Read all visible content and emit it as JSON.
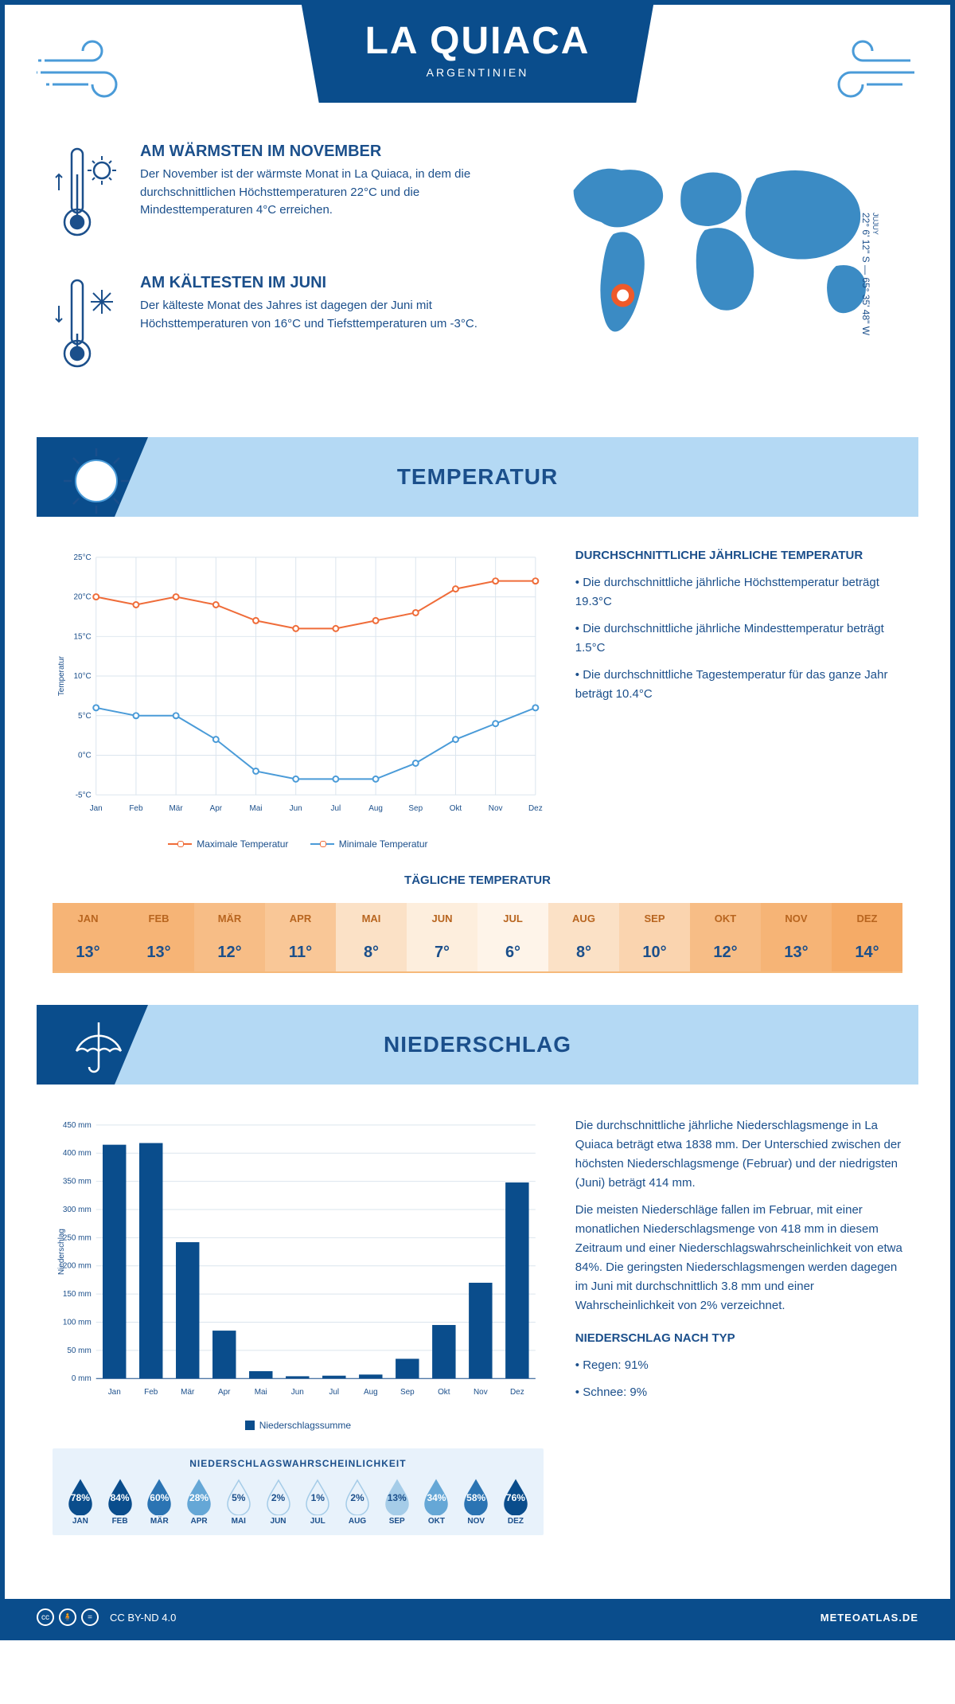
{
  "header": {
    "title": "LA QUIACA",
    "country": "ARGENTINIEN",
    "coords": "22° 6' 12\" S — 65° 35' 48\" W",
    "jujuy": "JUJUY"
  },
  "warmest": {
    "heading": "AM WÄRMSTEN IM NOVEMBER",
    "text": "Der November ist der wärmste Monat in La Quiaca, in dem die durchschnittlichen Höchsttemperaturen 22°C und die Mindesttemperaturen 4°C erreichen."
  },
  "coldest": {
    "heading": "AM KÄLTESTEN IM JUNI",
    "text": "Der kälteste Monat des Jahres ist dagegen der Juni mit Höchsttemperaturen von 16°C und Tiefsttemperaturen um -3°C."
  },
  "temp_section": {
    "title": "TEMPERATUR",
    "info_heading": "DURCHSCHNITTLICHE JÄHRLICHE TEMPERATUR",
    "info1": "• Die durchschnittliche jährliche Höchsttemperatur beträgt 19.3°C",
    "info2": "• Die durchschnittliche jährliche Mindesttemperatur beträgt 1.5°C",
    "info3": "• Die durchschnittliche Tagestemperatur für das ganze Jahr beträgt 10.4°C",
    "chart": {
      "type": "line",
      "months": [
        "Jan",
        "Feb",
        "Mär",
        "Apr",
        "Mai",
        "Jun",
        "Jul",
        "Aug",
        "Sep",
        "Okt",
        "Nov",
        "Dez"
      ],
      "max": [
        20,
        19,
        20,
        19,
        17,
        16,
        16,
        17,
        18,
        21,
        22,
        22
      ],
      "min": [
        6,
        5,
        5,
        2,
        -2,
        -3,
        -3,
        -3,
        -1,
        2,
        4,
        6
      ],
      "max_color": "#ef6c39",
      "min_color": "#4a9bd8",
      "ylim": [
        -5,
        25
      ],
      "ytick_step": 5,
      "ylabel": "Temperatur",
      "ytick_labels": [
        "-5°C",
        "0°C",
        "5°C",
        "10°C",
        "15°C",
        "20°C",
        "25°C"
      ],
      "grid_color": "#dbe5ee",
      "background": "#ffffff",
      "legend_max": "Maximale Temperatur",
      "legend_min": "Minimale Temperatur"
    },
    "daily": {
      "title": "TÄGLICHE TEMPERATUR",
      "months": [
        "JAN",
        "FEB",
        "MÄR",
        "APR",
        "MAI",
        "JUN",
        "JUL",
        "AUG",
        "SEP",
        "OKT",
        "NOV",
        "DEZ"
      ],
      "values": [
        "13°",
        "13°",
        "12°",
        "11°",
        "8°",
        "7°",
        "6°",
        "8°",
        "10°",
        "12°",
        "13°",
        "14°"
      ],
      "colors": [
        "#f6b476",
        "#f6b476",
        "#f7bd86",
        "#f9c797",
        "#fbe1c6",
        "#fdeedd",
        "#fef4e9",
        "#fbe1c6",
        "#fad4af",
        "#f7bd86",
        "#f6b476",
        "#f5ab67"
      ]
    }
  },
  "precip_section": {
    "title": "NIEDERSCHLAG",
    "chart": {
      "type": "bar",
      "months": [
        "Jan",
        "Feb",
        "Mär",
        "Apr",
        "Mai",
        "Jun",
        "Jul",
        "Aug",
        "Sep",
        "Okt",
        "Nov",
        "Dez"
      ],
      "values": [
        415,
        418,
        242,
        85,
        13,
        4,
        5,
        7,
        35,
        95,
        170,
        348
      ],
      "ylim": [
        0,
        450
      ],
      "ytick_step": 50,
      "ylabel": "Niederschlag",
      "ytick_labels": [
        "0 mm",
        "50 mm",
        "100 mm",
        "150 mm",
        "200 mm",
        "250 mm",
        "300 mm",
        "350 mm",
        "400 mm",
        "450 mm"
      ],
      "bar_color": "#0a4d8c",
      "grid_color": "#dbe5ee",
      "background": "#ffffff",
      "legend": "Niederschlagssumme"
    },
    "text1": "Die durchschnittliche jährliche Niederschlagsmenge in La Quiaca beträgt etwa 1838 mm. Der Unterschied zwischen der höchsten Niederschlagsmenge (Februar) und der niedrigsten (Juni) beträgt 414 mm.",
    "text2": "Die meisten Niederschläge fallen im Februar, mit einer monatlichen Niederschlagsmenge von 418 mm in diesem Zeitraum und einer Niederschlagswahrscheinlichkeit von etwa 84%. Die geringsten Niederschlagsmengen werden dagegen im Juni mit durchschnittlich 3.8 mm und einer Wahrscheinlichkeit von 2% verzeichnet.",
    "type_heading": "NIEDERSCHLAG NACH TYP",
    "type1": "• Regen: 91%",
    "type2": "• Schnee: 9%",
    "prob": {
      "title": "NIEDERSCHLAGSWAHRSCHEINLICHKEIT",
      "months": [
        "JAN",
        "FEB",
        "MÄR",
        "APR",
        "MAI",
        "JUN",
        "JUL",
        "AUG",
        "SEP",
        "OKT",
        "NOV",
        "DEZ"
      ],
      "values": [
        "78%",
        "84%",
        "60%",
        "28%",
        "5%",
        "2%",
        "1%",
        "2%",
        "13%",
        "34%",
        "58%",
        "76%"
      ],
      "pct": [
        78,
        84,
        60,
        28,
        5,
        2,
        1,
        2,
        13,
        34,
        58,
        76
      ]
    }
  },
  "footer": {
    "license": "CC BY-ND 4.0",
    "site": "METEOATLAS.DE"
  }
}
